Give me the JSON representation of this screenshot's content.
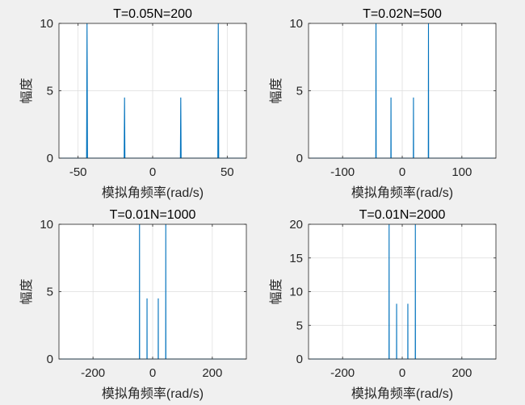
{
  "colors": {
    "series": "#0072BD",
    "background": "#f0f0f0",
    "axes": "#ffffff"
  },
  "chart_data": [
    {
      "type": "line",
      "title": "T=0.05N=200",
      "xlabel": "模拟角频率(rad/s)",
      "ylabel": "幅度",
      "xlim": [
        -62.83,
        62.83
      ],
      "ylim": [
        0,
        10
      ],
      "xticks": [
        -50,
        0,
        50
      ],
      "xtick_labels": [
        "-50",
        "0",
        "50"
      ],
      "yticks": [
        0,
        5,
        10
      ],
      "ytick_labels": [
        "0",
        "5",
        "10"
      ],
      "grid": true,
      "x": [
        -62.83,
        -44.3,
        -44.0,
        -43.7,
        -19.1,
        -18.85,
        -18.6,
        18.6,
        18.85,
        19.1,
        43.7,
        44.0,
        44.3,
        62.83
      ],
      "y": [
        0,
        0,
        10,
        0,
        0,
        4.5,
        0,
        0,
        4.5,
        0,
        0,
        10,
        0,
        0
      ]
    },
    {
      "type": "line",
      "title": "T=0.02N=500",
      "xlabel": "模拟角频率(rad/s)",
      "ylabel": "幅度",
      "xlim": [
        -157.08,
        157.08
      ],
      "ylim": [
        0,
        10
      ],
      "xticks": [
        -100,
        0,
        100
      ],
      "xtick_labels": [
        "-100",
        "0",
        "100"
      ],
      "yticks": [
        0,
        5,
        10
      ],
      "ytick_labels": [
        "0",
        "5",
        "10"
      ],
      "grid": true,
      "x": [
        -157.08,
        -44.3,
        -44.0,
        -43.7,
        -19.1,
        -18.85,
        -18.6,
        18.6,
        18.85,
        19.1,
        43.7,
        44.0,
        44.3,
        157.08
      ],
      "y": [
        0,
        0,
        10,
        0,
        0,
        4.5,
        0,
        0,
        4.5,
        0,
        0,
        10,
        0,
        0
      ]
    },
    {
      "type": "line",
      "title": "T=0.01N=1000",
      "xlabel": "模拟角频率(rad/s)",
      "ylabel": "幅度",
      "xlim": [
        -314.16,
        314.16
      ],
      "ylim": [
        0,
        10
      ],
      "xticks": [
        -200,
        0,
        200
      ],
      "xtick_labels": [
        "-200",
        "0",
        "200"
      ],
      "yticks": [
        0,
        5,
        10
      ],
      "ytick_labels": [
        "0",
        "5",
        "10"
      ],
      "grid": true,
      "x": [
        -314.16,
        -44.3,
        -44.0,
        -43.7,
        -19.1,
        -18.85,
        -18.6,
        18.6,
        18.85,
        19.1,
        43.7,
        44.0,
        44.3,
        314.16
      ],
      "y": [
        0,
        0,
        10,
        0,
        0,
        4.5,
        0,
        0,
        4.5,
        0,
        0,
        10,
        0,
        0
      ]
    },
    {
      "type": "line",
      "title": "T=0.01N=2000",
      "xlabel": "模拟角频率(rad/s)",
      "ylabel": "幅度",
      "xlim": [
        -314.16,
        314.16
      ],
      "ylim": [
        0,
        20
      ],
      "xticks": [
        -200,
        0,
        200
      ],
      "xtick_labels": [
        "-200",
        "0",
        "200"
      ],
      "yticks": [
        0,
        5,
        10,
        15,
        20
      ],
      "ytick_labels": [
        "0",
        "5",
        "10",
        "15",
        "20"
      ],
      "grid": true,
      "x": [
        -314.16,
        -44.3,
        -44.0,
        -43.7,
        -19.1,
        -18.85,
        -18.6,
        18.6,
        18.85,
        19.1,
        43.7,
        44.0,
        44.3,
        314.16
      ],
      "y": [
        0,
        0,
        20,
        0,
        0,
        8.2,
        0,
        0,
        8.2,
        0,
        0,
        20,
        0,
        0
      ]
    }
  ]
}
